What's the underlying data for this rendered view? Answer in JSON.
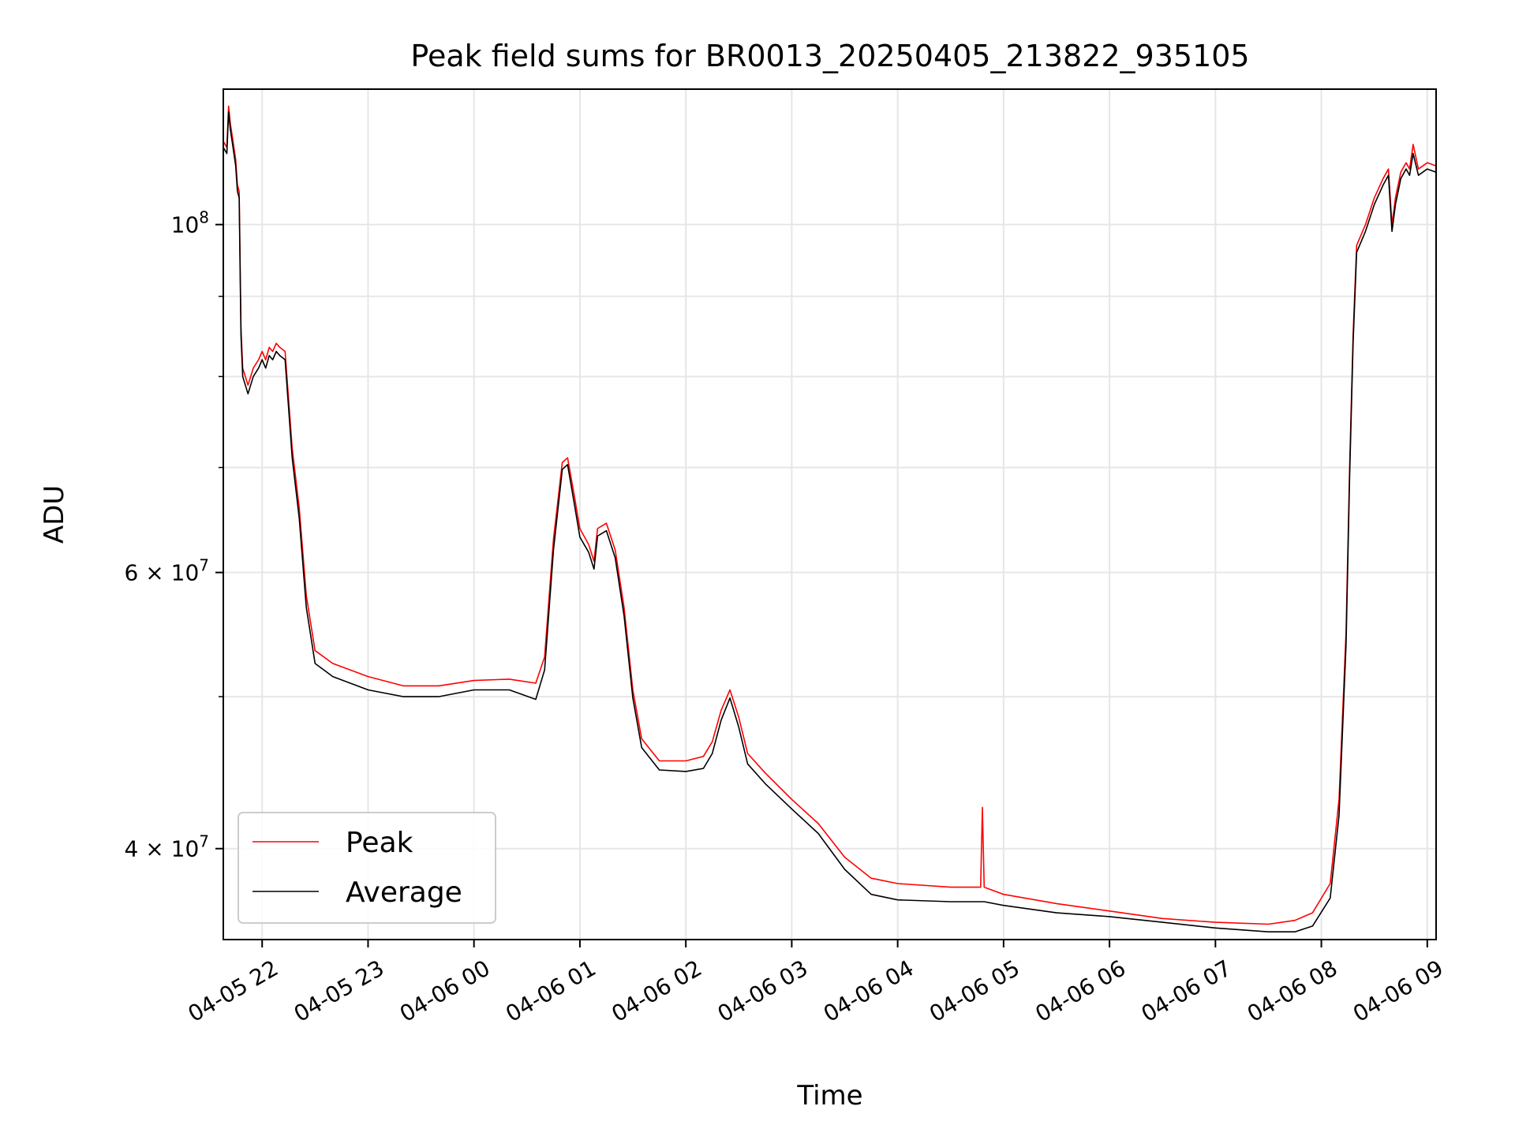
{
  "chart_data": {
    "type": "line",
    "title": "Peak field sums for BR0013_20250405_213822_935105",
    "xlabel": "Time",
    "ylabel": "ADU",
    "y_scale": "log",
    "ylim": [
      35000000,
      122000000
    ],
    "xlim": [
      "2025-04-05 21:38",
      "2025-04-06 09:05"
    ],
    "grid": true,
    "legend_position": "lower-left",
    "x_ticks": [
      {
        "label": "04-05 22",
        "value": "2025-04-05 22:00"
      },
      {
        "label": "04-05 23",
        "value": "2025-04-05 23:00"
      },
      {
        "label": "04-06 00",
        "value": "2025-04-06 00:00"
      },
      {
        "label": "04-06 01",
        "value": "2025-04-06 01:00"
      },
      {
        "label": "04-06 02",
        "value": "2025-04-06 02:00"
      },
      {
        "label": "04-06 03",
        "value": "2025-04-06 03:00"
      },
      {
        "label": "04-06 04",
        "value": "2025-04-06 04:00"
      },
      {
        "label": "04-06 05",
        "value": "2025-04-06 05:00"
      },
      {
        "label": "04-06 06",
        "value": "2025-04-06 06:00"
      },
      {
        "label": "04-06 07",
        "value": "2025-04-06 07:00"
      },
      {
        "label": "04-06 08",
        "value": "2025-04-06 08:00"
      },
      {
        "label": "04-06 09",
        "value": "2025-04-06 09:00"
      }
    ],
    "y_major_ticks": [
      {
        "label_base": "10",
        "label_exp": "8",
        "value": 100000000
      },
      {
        "label_base": "6 × 10",
        "label_exp": "7",
        "value": 60000000
      },
      {
        "label_base": "4 × 10",
        "label_exp": "7",
        "value": 40000000
      }
    ],
    "y_minor_gridlines": [
      40000000,
      50000000,
      60000000,
      70000000,
      80000000,
      90000000,
      100000000
    ],
    "series": [
      {
        "name": "Peak",
        "color": "#ff0000",
        "points": [
          [
            "2025-04-05 21:38",
            113000000
          ],
          [
            "2025-04-05 21:40",
            112000000
          ],
          [
            "2025-04-05 21:41",
            119000000
          ],
          [
            "2025-04-05 21:42",
            116000000
          ],
          [
            "2025-04-05 21:43",
            114000000
          ],
          [
            "2025-04-05 21:45",
            110000000
          ],
          [
            "2025-04-05 21:46",
            106000000
          ],
          [
            "2025-04-05 21:47",
            105000000
          ],
          [
            "2025-04-05 21:48",
            86000000
          ],
          [
            "2025-04-05 21:49",
            81000000
          ],
          [
            "2025-04-05 21:52",
            79000000
          ],
          [
            "2025-04-05 21:55",
            81000000
          ],
          [
            "2025-04-05 21:58",
            82000000
          ],
          [
            "2025-04-05 22:00",
            83000000
          ],
          [
            "2025-04-05 22:02",
            82000000
          ],
          [
            "2025-04-05 22:04",
            83500000
          ],
          [
            "2025-04-05 22:06",
            83000000
          ],
          [
            "2025-04-05 22:08",
            84000000
          ],
          [
            "2025-04-05 22:10",
            83500000
          ],
          [
            "2025-04-05 22:13",
            83000000
          ],
          [
            "2025-04-05 22:17",
            72000000
          ],
          [
            "2025-04-05 22:21",
            66000000
          ],
          [
            "2025-04-05 22:25",
            58000000
          ],
          [
            "2025-04-05 22:30",
            53500000
          ],
          [
            "2025-04-05 22:40",
            52500000
          ],
          [
            "2025-04-05 23:00",
            51500000
          ],
          [
            "2025-04-05 23:20",
            50800000
          ],
          [
            "2025-04-05 23:40",
            50800000
          ],
          [
            "2025-04-06 00:00",
            51200000
          ],
          [
            "2025-04-06 00:20",
            51300000
          ],
          [
            "2025-04-06 00:35",
            51000000
          ],
          [
            "2025-04-06 00:40",
            53000000
          ],
          [
            "2025-04-06 00:45",
            63000000
          ],
          [
            "2025-04-06 00:50",
            70500000
          ],
          [
            "2025-04-06 00:53",
            71000000
          ],
          [
            "2025-04-06 00:57",
            67000000
          ],
          [
            "2025-04-06 01:00",
            64000000
          ],
          [
            "2025-04-06 01:05",
            62500000
          ],
          [
            "2025-04-06 01:08",
            61000000
          ],
          [
            "2025-04-06 01:10",
            64000000
          ],
          [
            "2025-04-06 01:15",
            64500000
          ],
          [
            "2025-04-06 01:20",
            62000000
          ],
          [
            "2025-04-06 01:25",
            57000000
          ],
          [
            "2025-04-06 01:30",
            50500000
          ],
          [
            "2025-04-06 01:35",
            47000000
          ],
          [
            "2025-04-06 01:45",
            45500000
          ],
          [
            "2025-04-06 02:00",
            45500000
          ],
          [
            "2025-04-06 02:10",
            45800000
          ],
          [
            "2025-04-06 02:15",
            46800000
          ],
          [
            "2025-04-06 02:20",
            49000000
          ],
          [
            "2025-04-06 02:25",
            50500000
          ],
          [
            "2025-04-06 02:30",
            48500000
          ],
          [
            "2025-04-06 02:35",
            46000000
          ],
          [
            "2025-04-06 02:45",
            44700000
          ],
          [
            "2025-04-06 03:00",
            43000000
          ],
          [
            "2025-04-06 03:15",
            41500000
          ],
          [
            "2025-04-06 03:30",
            39500000
          ],
          [
            "2025-04-06 03:45",
            38300000
          ],
          [
            "2025-04-06 04:00",
            38000000
          ],
          [
            "2025-04-06 04:30",
            37800000
          ],
          [
            "2025-04-06 04:47",
            37800000
          ],
          [
            "2025-04-06 04:48",
            42500000
          ],
          [
            "2025-04-06 04:49",
            37800000
          ],
          [
            "2025-04-06 05:00",
            37400000
          ],
          [
            "2025-04-06 05:30",
            36900000
          ],
          [
            "2025-04-06 06:00",
            36500000
          ],
          [
            "2025-04-06 06:30",
            36100000
          ],
          [
            "2025-04-06 07:00",
            35900000
          ],
          [
            "2025-04-06 07:30",
            35800000
          ],
          [
            "2025-04-06 07:45",
            36000000
          ],
          [
            "2025-04-06 07:55",
            36400000
          ],
          [
            "2025-04-06 08:05",
            38000000
          ],
          [
            "2025-04-06 08:10",
            43000000
          ],
          [
            "2025-04-06 08:14",
            55000000
          ],
          [
            "2025-04-06 08:16",
            70000000
          ],
          [
            "2025-04-06 08:18",
            85000000
          ],
          [
            "2025-04-06 08:20",
            97000000
          ],
          [
            "2025-04-06 08:25",
            100000000
          ],
          [
            "2025-04-06 08:30",
            104000000
          ],
          [
            "2025-04-06 08:35",
            107000000
          ],
          [
            "2025-04-06 08:38",
            108500000
          ],
          [
            "2025-04-06 08:40",
            100000000
          ],
          [
            "2025-04-06 08:42",
            104000000
          ],
          [
            "2025-04-06 08:45",
            108000000
          ],
          [
            "2025-04-06 08:48",
            109500000
          ],
          [
            "2025-04-06 08:50",
            108500000
          ],
          [
            "2025-04-06 08:52",
            112500000
          ],
          [
            "2025-04-06 08:55",
            108500000
          ],
          [
            "2025-04-06 09:00",
            109500000
          ],
          [
            "2025-04-06 09:05",
            109000000
          ]
        ]
      },
      {
        "name": "Average",
        "color": "#000000",
        "points": [
          [
            "2025-04-05 21:38",
            112000000
          ],
          [
            "2025-04-05 21:40",
            111000000
          ],
          [
            "2025-04-05 21:41",
            118000000
          ],
          [
            "2025-04-05 21:42",
            115000000
          ],
          [
            "2025-04-05 21:43",
            113000000
          ],
          [
            "2025-04-05 21:45",
            109000000
          ],
          [
            "2025-04-05 21:46",
            105000000
          ],
          [
            "2025-04-05 21:47",
            104000000
          ],
          [
            "2025-04-05 21:48",
            85000000
          ],
          [
            "2025-04-05 21:49",
            80000000
          ],
          [
            "2025-04-05 21:52",
            78000000
          ],
          [
            "2025-04-05 21:55",
            80000000
          ],
          [
            "2025-04-05 21:58",
            81000000
          ],
          [
            "2025-04-05 22:00",
            82000000
          ],
          [
            "2025-04-05 22:02",
            81000000
          ],
          [
            "2025-04-05 22:04",
            82500000
          ],
          [
            "2025-04-05 22:06",
            82000000
          ],
          [
            "2025-04-05 22:08",
            83000000
          ],
          [
            "2025-04-05 22:10",
            82500000
          ],
          [
            "2025-04-05 22:13",
            82000000
          ],
          [
            "2025-04-05 22:17",
            71000000
          ],
          [
            "2025-04-05 22:21",
            65000000
          ],
          [
            "2025-04-05 22:25",
            57000000
          ],
          [
            "2025-04-05 22:30",
            52500000
          ],
          [
            "2025-04-05 22:40",
            51500000
          ],
          [
            "2025-04-05 23:00",
            50500000
          ],
          [
            "2025-04-05 23:20",
            50000000
          ],
          [
            "2025-04-05 23:40",
            50000000
          ],
          [
            "2025-04-06 00:00",
            50500000
          ],
          [
            "2025-04-06 00:20",
            50500000
          ],
          [
            "2025-04-06 00:35",
            49800000
          ],
          [
            "2025-04-06 00:40",
            52000000
          ],
          [
            "2025-04-06 00:45",
            62000000
          ],
          [
            "2025-04-06 00:50",
            69800000
          ],
          [
            "2025-04-06 00:53",
            70300000
          ],
          [
            "2025-04-06 00:57",
            66200000
          ],
          [
            "2025-04-06 01:00",
            63200000
          ],
          [
            "2025-04-06 01:05",
            61800000
          ],
          [
            "2025-04-06 01:08",
            60300000
          ],
          [
            "2025-04-06 01:10",
            63300000
          ],
          [
            "2025-04-06 01:15",
            63800000
          ],
          [
            "2025-04-06 01:20",
            61300000
          ],
          [
            "2025-04-06 01:25",
            56300000
          ],
          [
            "2025-04-06 01:30",
            49900000
          ],
          [
            "2025-04-06 01:35",
            46400000
          ],
          [
            "2025-04-06 01:45",
            44900000
          ],
          [
            "2025-04-06 02:00",
            44800000
          ],
          [
            "2025-04-06 02:10",
            45000000
          ],
          [
            "2025-04-06 02:15",
            46000000
          ],
          [
            "2025-04-06 02:20",
            48300000
          ],
          [
            "2025-04-06 02:25",
            49900000
          ],
          [
            "2025-04-06 02:30",
            47800000
          ],
          [
            "2025-04-06 02:35",
            45300000
          ],
          [
            "2025-04-06 02:45",
            44000000
          ],
          [
            "2025-04-06 03:00",
            42400000
          ],
          [
            "2025-04-06 03:15",
            40900000
          ],
          [
            "2025-04-06 03:30",
            38800000
          ],
          [
            "2025-04-06 03:45",
            37400000
          ],
          [
            "2025-04-06 04:00",
            37100000
          ],
          [
            "2025-04-06 04:30",
            37000000
          ],
          [
            "2025-04-06 04:47",
            37000000
          ],
          [
            "2025-04-06 04:48",
            37000000
          ],
          [
            "2025-04-06 04:49",
            37000000
          ],
          [
            "2025-04-06 05:00",
            36800000
          ],
          [
            "2025-04-06 05:30",
            36400000
          ],
          [
            "2025-04-06 06:00",
            36200000
          ],
          [
            "2025-04-06 06:30",
            35900000
          ],
          [
            "2025-04-06 07:00",
            35600000
          ],
          [
            "2025-04-06 07:30",
            35400000
          ],
          [
            "2025-04-06 07:45",
            35400000
          ],
          [
            "2025-04-06 07:55",
            35700000
          ],
          [
            "2025-04-06 08:05",
            37200000
          ],
          [
            "2025-04-06 08:10",
            42000000
          ],
          [
            "2025-04-06 08:14",
            54000000
          ],
          [
            "2025-04-06 08:16",
            69000000
          ],
          [
            "2025-04-06 08:18",
            84000000
          ],
          [
            "2025-04-06 08:20",
            96000000
          ],
          [
            "2025-04-06 08:25",
            99000000
          ],
          [
            "2025-04-06 08:30",
            103000000
          ],
          [
            "2025-04-06 08:35",
            106000000
          ],
          [
            "2025-04-06 08:38",
            107500000
          ],
          [
            "2025-04-06 08:40",
            99000000
          ],
          [
            "2025-04-06 08:42",
            103000000
          ],
          [
            "2025-04-06 08:45",
            107000000
          ],
          [
            "2025-04-06 08:48",
            108500000
          ],
          [
            "2025-04-06 08:50",
            107500000
          ],
          [
            "2025-04-06 08:52",
            111000000
          ],
          [
            "2025-04-06 08:55",
            107500000
          ],
          [
            "2025-04-06 09:00",
            108500000
          ],
          [
            "2025-04-06 09:05",
            108000000
          ]
        ]
      }
    ]
  }
}
